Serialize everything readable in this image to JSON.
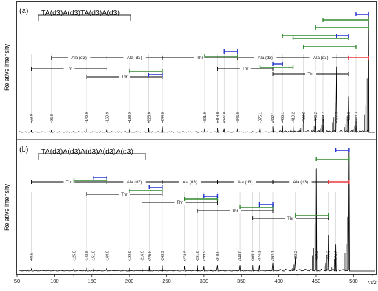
{
  "chart_data": [
    {
      "type": "line",
      "panel": "(a)",
      "sequence": "TA(d3)A(d3)TA(d3)A(d3)",
      "ylabel": "Relative intensity",
      "xlim": [
        50,
        530
      ],
      "peak_labels": [
        "68.9",
        "95.8",
        "142.9",
        "169.9",
        "199.9",
        "226.0",
        "244.0",
        "301.0",
        "318.0",
        "327.0",
        "345.0",
        "375.1",
        "392.1",
        "405.1",
        "419.2",
        "433.2",
        "449.2",
        "459.2",
        "477.3",
        "493.3",
        "503.3"
      ],
      "peaks": [
        {
          "x": 68.9,
          "y": 0.02
        },
        {
          "x": 95.8,
          "y": 0.02
        },
        {
          "x": 142.9,
          "y": 0.03
        },
        {
          "x": 169.9,
          "y": 0.03
        },
        {
          "x": 199.9,
          "y": 0.03
        },
        {
          "x": 226.0,
          "y": 0.04
        },
        {
          "x": 244.0,
          "y": 0.05
        },
        {
          "x": 301.0,
          "y": 0.03
        },
        {
          "x": 318.0,
          "y": 0.04
        },
        {
          "x": 327.0,
          "y": 0.03
        },
        {
          "x": 345.0,
          "y": 0.03
        },
        {
          "x": 375.1,
          "y": 0.04
        },
        {
          "x": 392.1,
          "y": 0.05
        },
        {
          "x": 405.1,
          "y": 0.06
        },
        {
          "x": 419.2,
          "y": 0.08
        },
        {
          "x": 433.2,
          "y": 0.16
        },
        {
          "x": 449.2,
          "y": 0.12
        },
        {
          "x": 459.2,
          "y": 0.14
        },
        {
          "x": 477.3,
          "y": 0.55
        },
        {
          "x": 493.3,
          "y": 0.3
        },
        {
          "x": 503.3,
          "y": 0.12
        },
        {
          "x": 520.0,
          "y": 1.0
        }
      ],
      "fragments": [
        {
          "x1": 95.8,
          "x2": 169.9,
          "label": "Ala (d3)",
          "color": "#000000"
        },
        {
          "x1": 169.9,
          "x2": 244.0,
          "label": "Ala (d3)",
          "color": "#000000"
        },
        {
          "x1": 244.0,
          "x2": 345.0,
          "label": "Thr",
          "color": "#000000"
        },
        {
          "x1": 345.0,
          "x2": 419.2,
          "label": "Ala (d3)",
          "color": "#000000"
        },
        {
          "x1": 419.2,
          "x2": 493.3,
          "label": "Ala (d3)",
          "color": "#000000"
        },
        {
          "x1": 493.3,
          "x2": 520.0,
          "label": "",
          "color": "#e8383d"
        },
        {
          "x1": 68.9,
          "x2": 169.9,
          "label": "Thr",
          "color": "#000000"
        },
        {
          "x1": 142.9,
          "x2": 244.0,
          "label": "Thr",
          "color": "#000000"
        },
        {
          "x1": 318.0,
          "x2": 392.1,
          "label": "Thr",
          "color": "#000000"
        },
        {
          "x1": 392.1,
          "x2": 493.3,
          "label": "Thr",
          "color": "#000000"
        },
        {
          "x1": 301.0,
          "x2": 345.0,
          "label": "",
          "color": "#2e8b2e"
        },
        {
          "x1": 199.9,
          "x2": 244.0,
          "label": "",
          "color": "#2e8b2e"
        },
        {
          "x1": 375.1,
          "x2": 419.2,
          "label": "",
          "color": "#2e8b2e"
        },
        {
          "x1": 405.1,
          "x2": 477.3,
          "label": "",
          "color": "#2e8b2e"
        },
        {
          "x1": 433.2,
          "x2": 503.3,
          "label": "",
          "color": "#2e8b2e"
        },
        {
          "x1": 449.2,
          "x2": 520.0,
          "label": "",
          "color": "#2e8b2e"
        },
        {
          "x1": 419.2,
          "x2": 493.3,
          "label": "",
          "color": "#2e8b2e"
        },
        {
          "x1": 459.2,
          "x2": 520.0,
          "label": "",
          "color": "#2e8b2e"
        },
        {
          "x1": 327.0,
          "x2": 345.0,
          "label": "",
          "color": "#2233cc"
        },
        {
          "x1": 226.0,
          "x2": 244.0,
          "label": "",
          "color": "#2233cc"
        },
        {
          "x1": 392.1,
          "x2": 405.1,
          "label": "",
          "color": "#2233cc"
        },
        {
          "x1": 477.3,
          "x2": 493.3,
          "label": "",
          "color": "#2233cc"
        },
        {
          "x1": 503.3,
          "x2": 520.0,
          "label": "",
          "color": "#2233cc"
        }
      ]
    },
    {
      "type": "line",
      "panel": "(b)",
      "sequence": "TA(d3)A(d3)A(d3)A(d3)A(d3)",
      "ylabel": "Relative intensity",
      "xlabel": "m/z",
      "xlim": [
        50,
        530
      ],
      "xticks": [
        "50",
        "100",
        "150",
        "200",
        "250",
        "300",
        "350",
        "400",
        "450",
        "500"
      ],
      "peak_labels": [
        "68.9",
        "125.8",
        "142.8",
        "151.8",
        "169.8",
        "199.8",
        "216.9",
        "226.8",
        "243.9",
        "273.9",
        "291.0",
        "299.9",
        "318.0",
        "348.0",
        "365.1",
        "374.1",
        "392.1",
        "422.2",
        "450.2",
        "466.3",
        "476.3"
      ],
      "peaks": [
        {
          "x": 68.9,
          "y": 0.02
        },
        {
          "x": 125.8,
          "y": 0.02
        },
        {
          "x": 142.8,
          "y": 0.03
        },
        {
          "x": 151.8,
          "y": 0.02
        },
        {
          "x": 169.8,
          "y": 0.03
        },
        {
          "x": 199.8,
          "y": 0.03
        },
        {
          "x": 216.9,
          "y": 0.03
        },
        {
          "x": 226.8,
          "y": 0.04
        },
        {
          "x": 243.9,
          "y": 0.05
        },
        {
          "x": 273.9,
          "y": 0.04
        },
        {
          "x": 291.0,
          "y": 0.05
        },
        {
          "x": 299.9,
          "y": 0.04
        },
        {
          "x": 318.0,
          "y": 0.05
        },
        {
          "x": 348.0,
          "y": 0.05
        },
        {
          "x": 365.1,
          "y": 0.05
        },
        {
          "x": 374.1,
          "y": 0.05
        },
        {
          "x": 392.1,
          "y": 0.07
        },
        {
          "x": 422.2,
          "y": 0.12
        },
        {
          "x": 450.2,
          "y": 0.85
        },
        {
          "x": 466.3,
          "y": 0.3
        },
        {
          "x": 476.3,
          "y": 0.22
        },
        {
          "x": 494.0,
          "y": 1.0
        }
      ],
      "fragments": [
        {
          "x1": 68.9,
          "x2": 169.8,
          "label": "Thr",
          "color": "#000000"
        },
        {
          "x1": 169.8,
          "x2": 243.9,
          "label": "Ala (d3)",
          "color": "#000000"
        },
        {
          "x1": 243.9,
          "x2": 318.0,
          "label": "Ala (d3)",
          "color": "#000000"
        },
        {
          "x1": 318.0,
          "x2": 392.1,
          "label": "Ala (d3)",
          "color": "#000000"
        },
        {
          "x1": 392.1,
          "x2": 466.3,
          "label": "Ala (d3)",
          "color": "#000000"
        },
        {
          "x1": 466.3,
          "x2": 494.0,
          "label": "",
          "color": "#e8383d"
        },
        {
          "x1": 142.8,
          "x2": 243.9,
          "label": "Thr",
          "color": "#000000"
        },
        {
          "x1": 216.9,
          "x2": 318.0,
          "label": "Thr",
          "color": "#000000"
        },
        {
          "x1": 291.0,
          "x2": 392.1,
          "label": "Thr",
          "color": "#000000"
        },
        {
          "x1": 365.1,
          "x2": 466.3,
          "label": "Thr",
          "color": "#000000"
        },
        {
          "x1": 125.8,
          "x2": 169.8,
          "label": "",
          "color": "#2e8b2e"
        },
        {
          "x1": 199.8,
          "x2": 243.9,
          "label": "",
          "color": "#2e8b2e"
        },
        {
          "x1": 273.9,
          "x2": 318.0,
          "label": "",
          "color": "#2e8b2e"
        },
        {
          "x1": 348.0,
          "x2": 392.1,
          "label": "",
          "color": "#2e8b2e"
        },
        {
          "x1": 422.2,
          "x2": 466.3,
          "label": "",
          "color": "#2e8b2e"
        },
        {
          "x1": 450.2,
          "x2": 494.0,
          "label": "",
          "color": "#2e8b2e"
        },
        {
          "x1": 151.8,
          "x2": 169.8,
          "label": "",
          "color": "#2233cc"
        },
        {
          "x1": 226.8,
          "x2": 243.9,
          "label": "",
          "color": "#2233cc"
        },
        {
          "x1": 299.9,
          "x2": 318.0,
          "label": "",
          "color": "#2233cc"
        },
        {
          "x1": 374.1,
          "x2": 392.1,
          "label": "",
          "color": "#2233cc"
        },
        {
          "x1": 476.3,
          "x2": 494.0,
          "label": "",
          "color": "#2233cc"
        }
      ]
    }
  ]
}
